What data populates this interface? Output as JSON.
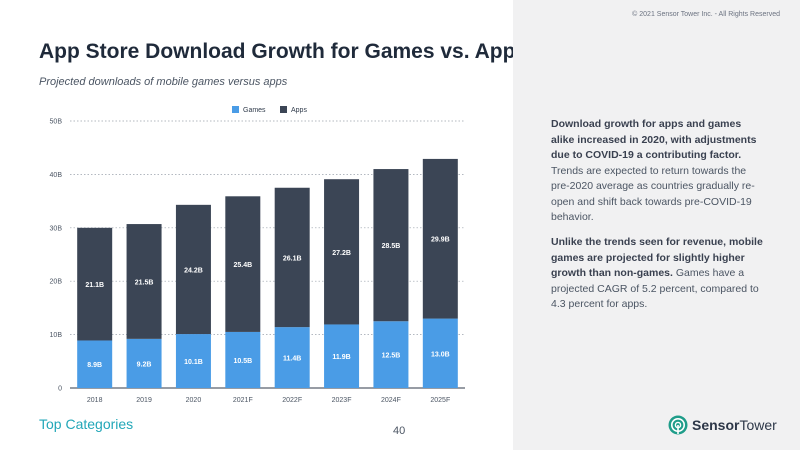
{
  "copyright": "© 2021 Sensor Tower Inc. - All Rights Reserved",
  "title": "App Store Download Growth for Games vs. Apps",
  "subtitle": "Projected downloads of mobile games versus apps",
  "colors": {
    "games": "#4a9ce6",
    "apps": "#3b4555",
    "accent": "#22a7b8"
  },
  "chart_data": {
    "type": "bar",
    "stacked": true,
    "categories": [
      "2018",
      "2019",
      "2020",
      "2021F",
      "2022F",
      "2023F",
      "2024F",
      "2025F"
    ],
    "series": [
      {
        "name": "Games",
        "values": [
          8.9,
          9.2,
          10.1,
          10.5,
          11.4,
          11.9,
          12.5,
          13.0
        ],
        "labels": [
          "8.9B",
          "9.2B",
          "10.1B",
          "10.5B",
          "11.4B",
          "11.9B",
          "12.5B",
          "13.0B"
        ]
      },
      {
        "name": "Apps",
        "values": [
          21.1,
          21.5,
          24.2,
          25.4,
          26.1,
          27.2,
          28.5,
          29.9
        ],
        "labels": [
          "21.1B",
          "21.5B",
          "24.2B",
          "25.4B",
          "26.1B",
          "27.2B",
          "28.5B",
          "29.9B"
        ]
      }
    ],
    "ylim": [
      0,
      50
    ],
    "yticks": [
      0,
      10,
      20,
      30,
      40,
      50
    ],
    "ytick_labels": [
      "0",
      "10B",
      "20B",
      "30B",
      "40B",
      "50B"
    ],
    "grid": true,
    "legend": "top-center"
  },
  "paragraph1": {
    "bold": "Download growth for apps and games alike increased in 2020, with adjustments due to COVID-19 a contributing factor.",
    "rest": " Trends are expected to return towards the pre-2020 average as countries gradually re-open and shift back towards pre-COVID-19 behavior."
  },
  "paragraph2": {
    "bold": "Unlike the trends seen for revenue, mobile games are projected for slightly higher growth than non-games.",
    "rest": " Games have a projected CAGR of 5.2 percent, compared to 4.3 percent for apps."
  },
  "footer": {
    "link": "Top Categories",
    "page": "40"
  },
  "logo": {
    "bold": "Sensor",
    "light": "Tower",
    "icon": "sensor-tower-logo-icon"
  }
}
